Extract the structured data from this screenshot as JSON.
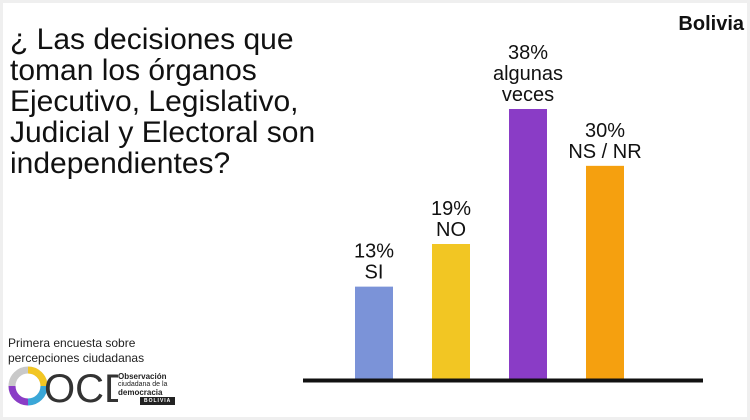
{
  "country": "Bolivia",
  "question_lines": [
    "¿ Las decisiones que",
    "toman los órganos",
    "Ejecutivo, Legislativo,",
    "Judicial y Electoral son",
    "independientes?"
  ],
  "footer": {
    "line1": "Primera encuesta sobre",
    "line2": "percepciones ciudadanas"
  },
  "logo": {
    "mark": "OCD",
    "line1": "Observación",
    "line2": "ciudadana de la",
    "line3": "democracia",
    "tag": "BOLIVIA"
  },
  "chart_data": {
    "type": "bar",
    "categories": [
      "SI",
      "NO",
      "algunas veces",
      "NS / NR"
    ],
    "values": [
      13,
      19,
      38,
      30
    ],
    "value_labels": [
      "13%",
      "19%",
      "38%",
      "30%"
    ],
    "category_label_lines": [
      [
        "SI"
      ],
      [
        "NO"
      ],
      [
        "algunas",
        "veces"
      ],
      [
        "NS / NR"
      ]
    ],
    "colors": [
      "#7b93d8",
      "#f2c623",
      "#8a3cc6",
      "#f5a00f"
    ],
    "ylim": [
      0,
      38
    ],
    "grid": false
  }
}
